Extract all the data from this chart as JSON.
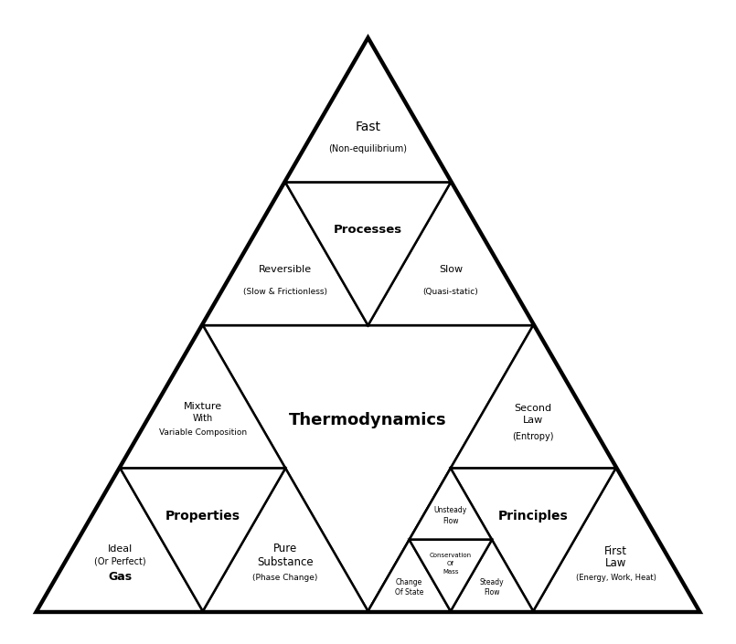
{
  "background_color": "#ffffff",
  "line_color": "#000000",
  "lw_outer": 4.5,
  "lw_inner": 1.8,
  "labels": {
    "fast_main": "Fast",
    "fast_sub": "(Non-equilibrium)",
    "processes": "Processes",
    "reversible_main": "Reversible",
    "reversible_sub": "(Slow & Frictionless)",
    "slow_main": "Slow",
    "slow_sub": "(Quasi-static)",
    "thermodynamics": "Thermodynamics",
    "mixture_1": "Mixture",
    "mixture_2": "With",
    "mixture_3": "Variable Composition",
    "second_law_1": "Second",
    "second_law_2": "Law",
    "second_law_3": "(Entropy)",
    "properties": "Properties",
    "ideal_1": "Ideal",
    "ideal_2": "(Or Perfect)",
    "ideal_3": "Gas",
    "pure_1": "Pure",
    "pure_2": "Substance",
    "pure_3": "(Phase Change)",
    "principles": "Principles",
    "unsteady_1": "Unsteady",
    "unsteady_2": "Flow",
    "conservation_1": "Conservation",
    "conservation_2": "Of",
    "conservation_3": "Mass",
    "change_1": "Change",
    "change_2": "Of State",
    "steady_1": "Steady",
    "steady_2": "Flow",
    "first_1": "First",
    "first_2": "Law",
    "first_3": "(Energy, Work, Heat)"
  }
}
